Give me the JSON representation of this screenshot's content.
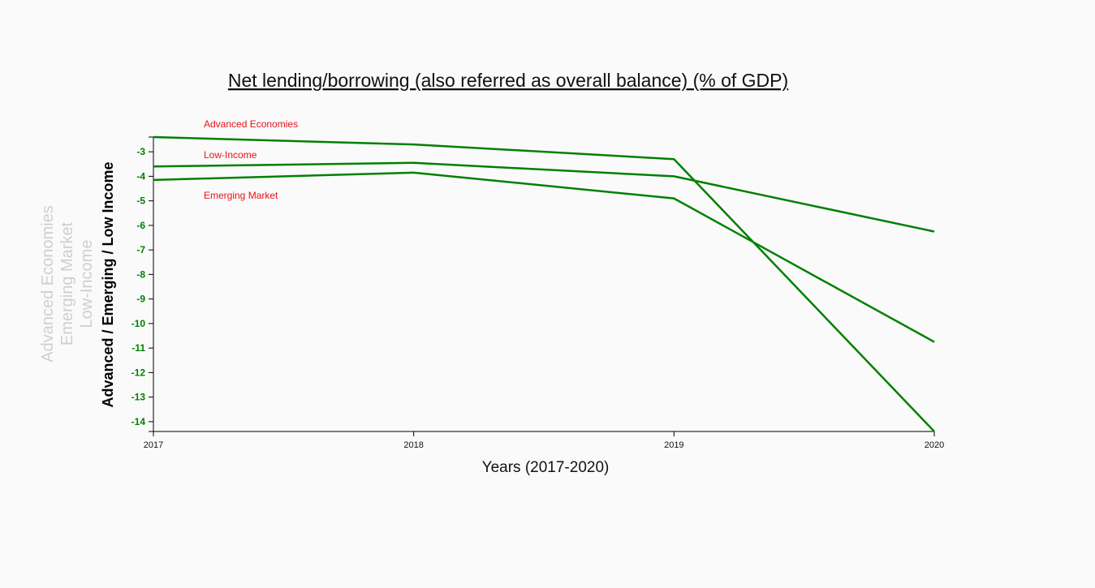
{
  "chart_data": {
    "type": "line",
    "title": "Net lending/borrowing (also referred as overall balance) (% of GDP)",
    "xlabel": "Years (2017-2020)",
    "ylabel": "Advanced / Emerging / Low Income",
    "side_labels": [
      "Advanced Economies",
      "Emerging Market",
      "Low-Income"
    ],
    "x": [
      "2017",
      "2018",
      "2019",
      "2020"
    ],
    "ylim": [
      -14.4,
      -2.4
    ],
    "yticks": [
      "-3",
      "-4",
      "-5",
      "-6",
      "-7",
      "-8",
      "-9",
      "-10",
      "-11",
      "-12",
      "-13",
      "-14"
    ],
    "legend": [
      "Advanced Economies",
      "Low-Income",
      "Emerging Market"
    ],
    "series": [
      {
        "name": "Advanced Economies",
        "values": [
          -2.4,
          -2.7,
          -3.3,
          -14.4
        ]
      },
      {
        "name": "Low-Income",
        "values": [
          -3.6,
          -3.45,
          -4.0,
          -6.25
        ]
      },
      {
        "name": "Emerging Market",
        "values": [
          -4.15,
          -3.85,
          -4.9,
          -10.75
        ]
      }
    ],
    "colors": {
      "line": "#008000",
      "tick": "#008000",
      "legend": "#e4121a",
      "axis": "#000000"
    },
    "grid": false
  }
}
